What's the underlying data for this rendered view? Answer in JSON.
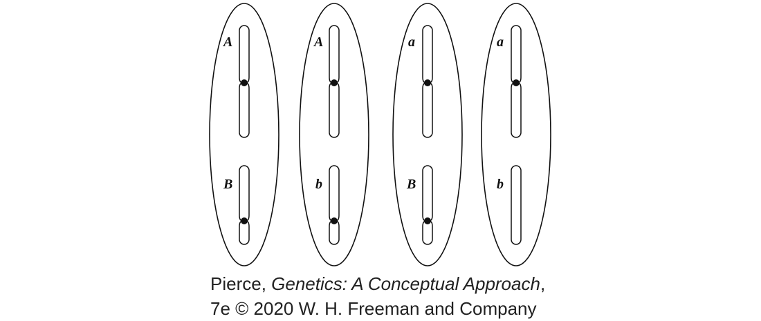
{
  "cells": [
    {
      "alleles": [
        "A",
        "B"
      ]
    },
    {
      "alleles": [
        "A",
        "b"
      ]
    },
    {
      "alleles": [
        "a",
        "B"
      ]
    },
    {
      "alleles": [
        "a",
        "b"
      ]
    }
  ],
  "credit": {
    "author": "Pierce, ",
    "book_title": "Genetics: A Conceptual Approach",
    "title_suffix": ",",
    "line2": "7e © 2020 W. H. Freeman and Company"
  }
}
